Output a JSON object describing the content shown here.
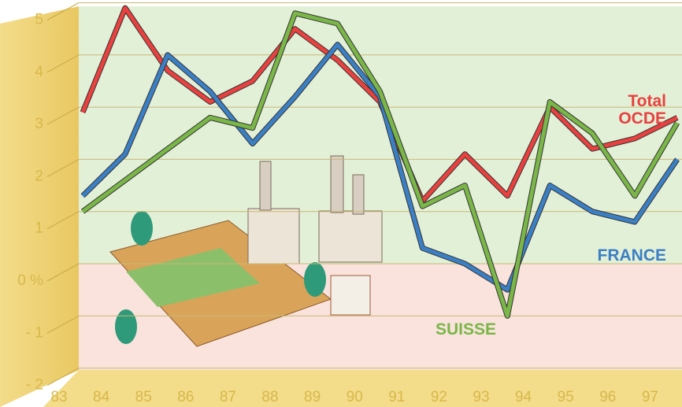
{
  "chart_data": {
    "type": "line",
    "categories": [
      "83",
      "84",
      "85",
      "86",
      "87",
      "88",
      "89",
      "90",
      "91",
      "92",
      "93",
      "94",
      "95",
      "96",
      "97"
    ],
    "series": [
      {
        "name": "Total OCDE",
        "color": "#e8413f",
        "values": [
          2.9,
          4.9,
          3.7,
          3.1,
          3.5,
          4.5,
          3.9,
          3.1,
          1.2,
          2.1,
          1.3,
          3.0,
          2.2,
          2.4,
          2.8
        ]
      },
      {
        "name": "FRANCE",
        "color": "#3b7fc4",
        "values": [
          1.3,
          2.1,
          4.0,
          3.3,
          2.3,
          3.2,
          4.2,
          3.2,
          0.3,
          0.0,
          -0.5,
          1.5,
          1.0,
          0.8,
          2.0
        ]
      },
      {
        "name": "SUISSE",
        "color": "#7ab648",
        "values": [
          1.0,
          1.6,
          2.2,
          2.8,
          2.6,
          4.8,
          4.6,
          3.3,
          1.1,
          1.5,
          -1.0,
          3.1,
          2.5,
          1.3,
          2.7
        ]
      }
    ],
    "ylim": [
      -2,
      5
    ],
    "yticks": [
      {
        "value": -2,
        "label": "- 2"
      },
      {
        "value": -1,
        "label": "- 1"
      },
      {
        "value": 0,
        "label": "0 %"
      },
      1,
      2,
      3,
      4,
      5
    ],
    "grid": true
  }
}
